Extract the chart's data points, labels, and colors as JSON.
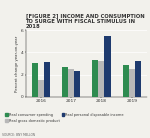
{
  "title_bracket": "[FIGURE 2]",
  "title_main": " INCOME AND CONSUMPTION TO SURGE WITH FISCAL STIMULUS IN 2018",
  "years": [
    "2016",
    "2017",
    "2018",
    "2019"
  ],
  "series_order": [
    "Real consumer spending",
    "Real gross domestic product",
    "Real personal disposable income"
  ],
  "series": {
    "Real consumer spending": [
      3.0,
      2.7,
      3.3,
      2.9
    ],
    "Real gross domestic product": [
      1.5,
      2.5,
      3.2,
      2.5
    ],
    "Real personal disposable income": [
      3.1,
      2.3,
      5.5,
      3.2
    ]
  },
  "colors": {
    "Real consumer spending": "#2e8b50",
    "Real gross domestic product": "#b8b8b8",
    "Real personal disposable income": "#1e3a6e"
  },
  "ylabel": "Percent change year-on-year",
  "ylim": [
    0,
    6
  ],
  "yticks": [
    0,
    2,
    4,
    6
  ],
  "source": "SOURCE: BNY MELLON",
  "background_color": "#f2f1ec"
}
